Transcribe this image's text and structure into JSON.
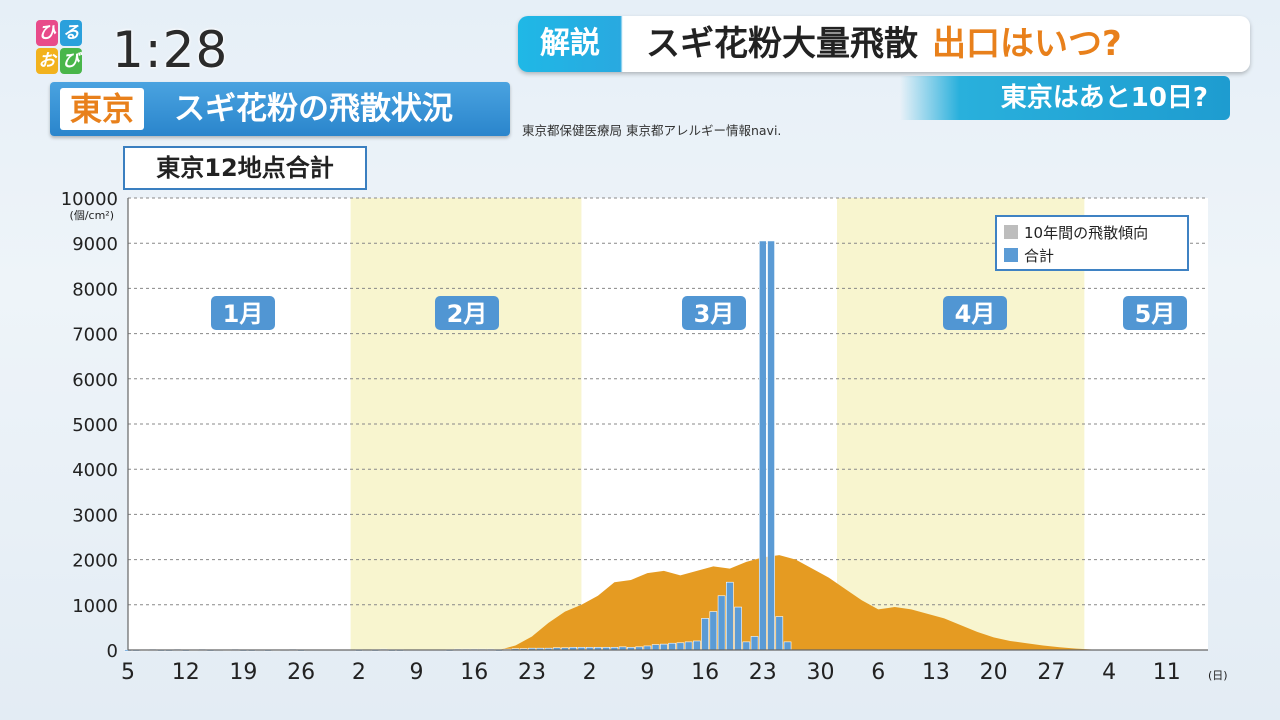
{
  "logo": {
    "chars": [
      "ひ",
      "る",
      "お",
      "び"
    ],
    "colors": [
      "#e84b8a",
      "#2aa0dc",
      "#f2b21e",
      "#49b64a"
    ]
  },
  "clock": "1:28",
  "headline": {
    "tag": "解説",
    "main": "スギ花粉大量飛散",
    "accent": "出口はいつ?"
  },
  "subhead": "東京はあと10日?",
  "section": {
    "city": "東京",
    "title": "スギ花粉の飛散状況"
  },
  "source": "東京都保健医療局 東京都アレルギー情報navi.",
  "chart_data": {
    "type": "bar",
    "title": "東京12地点合計",
    "unit_label": "(個/cm²)",
    "ylim": [
      0,
      10000
    ],
    "y_ticks": [
      0,
      1000,
      2000,
      3000,
      4000,
      5000,
      6000,
      7000,
      8000,
      9000,
      10000
    ],
    "x_tick_labels": [
      "5",
      "12",
      "19",
      "26",
      "2",
      "9",
      "16",
      "23",
      "2",
      "9",
      "16",
      "23",
      "30",
      "6",
      "13",
      "20",
      "27",
      "4",
      "11"
    ],
    "x_unit": "(日)",
    "months": [
      "1月",
      "2月",
      "3月",
      "4月",
      "5月"
    ],
    "grid": true,
    "legend_position": "top-right",
    "series": [
      {
        "name": "10年間の飛散傾向",
        "type": "area",
        "color": "#e59b22",
        "day_range": [
          50,
          123
        ],
        "x_days": [
          50,
          52,
          54,
          56,
          58,
          60,
          62,
          64,
          66,
          68,
          70,
          72,
          74,
          76,
          78,
          80,
          82,
          84,
          86,
          88,
          90,
          92,
          94,
          96,
          98,
          100,
          102,
          104,
          106,
          108,
          110,
          112,
          114,
          116,
          118,
          120,
          123
        ],
        "values": [
          0,
          100,
          300,
          600,
          850,
          1000,
          1200,
          1500,
          1550,
          1700,
          1750,
          1650,
          1750,
          1850,
          1800,
          1950,
          2050,
          2100,
          2000,
          1800,
          1600,
          1350,
          1100,
          900,
          950,
          900,
          800,
          700,
          550,
          400,
          280,
          200,
          150,
          100,
          60,
          30,
          0
        ]
      },
      {
        "name": "合計",
        "type": "bar",
        "color": "#5b9bd5",
        "start_day": 1,
        "values": [
          20,
          20,
          10,
          0,
          10,
          10,
          15,
          20,
          10,
          10,
          20,
          10,
          15,
          20,
          10,
          0,
          15,
          20,
          10,
          10,
          0,
          10,
          15,
          0,
          20,
          10,
          0,
          0,
          0,
          0,
          0,
          0,
          10,
          0,
          10,
          20,
          10,
          10,
          0,
          0,
          0,
          0,
          0,
          10,
          20,
          20,
          20,
          20,
          20,
          10,
          20,
          30,
          30,
          40,
          40,
          40,
          50,
          50,
          60,
          60,
          60,
          60,
          60,
          60,
          70,
          60,
          70,
          90,
          120,
          130,
          150,
          160,
          180,
          200,
          700,
          850,
          1200,
          1500,
          950,
          180,
          300,
          9050,
          9050,
          740,
          180
        ]
      }
    ]
  }
}
